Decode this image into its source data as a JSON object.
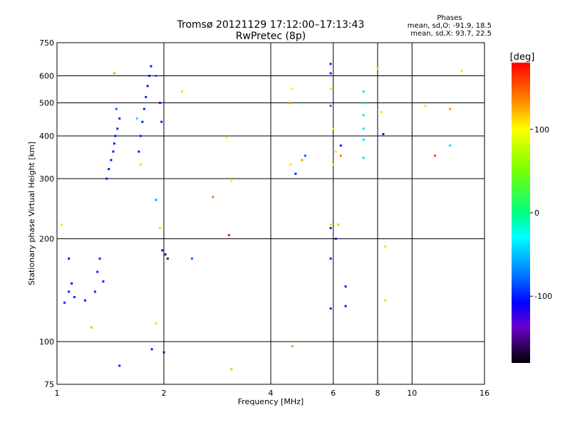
{
  "header": {
    "title": "Tromsø 20121129 17:12:00–17:13:43",
    "subtitle": "RwPretec (8p)"
  },
  "phase_box": {
    "heading": "Phases",
    "line_o": "mean, sd,O: -91.9, 18.5",
    "line_x": "mean, sd,X:  93.7, 22.5"
  },
  "colorbar": {
    "unit_label": "[deg]",
    "ticks": [
      "100",
      "0",
      "-100"
    ],
    "tick_values": [
      100,
      0,
      -100
    ],
    "range": [
      -180,
      180
    ]
  },
  "chart_data": {
    "type": "scatter",
    "xlabel": "Frequency [MHz]",
    "ylabel": "Stationary phase Virtual Height [km]",
    "xscale": "log",
    "yscale": "log",
    "xlim": [
      1,
      16
    ],
    "ylim": [
      75,
      750
    ],
    "x_ticks": [
      1,
      2,
      4,
      6,
      8,
      10,
      16
    ],
    "x_tick_labels": [
      "1",
      "2",
      "4",
      "6",
      "8",
      "10",
      "16"
    ],
    "y_ticks": [
      75,
      100,
      200,
      300,
      400,
      500,
      600,
      750
    ],
    "y_tick_labels": [
      "75",
      "100",
      "200",
      "300",
      "400",
      "500",
      "600",
      "750"
    ],
    "grid": true,
    "series": [
      {
        "points": [
          {
            "x": 1.05,
            "y": 130,
            "phase": -100
          },
          {
            "x": 1.08,
            "y": 140,
            "phase": -100
          },
          {
            "x": 1.1,
            "y": 148,
            "phase": -105
          },
          {
            "x": 1.12,
            "y": 135,
            "phase": -100
          },
          {
            "x": 1.2,
            "y": 132,
            "phase": -100
          },
          {
            "x": 1.28,
            "y": 140,
            "phase": -100
          },
          {
            "x": 1.3,
            "y": 160,
            "phase": -100
          },
          {
            "x": 1.32,
            "y": 175,
            "phase": -100
          },
          {
            "x": 1.35,
            "y": 150,
            "phase": -100
          },
          {
            "x": 1.08,
            "y": 175,
            "phase": -120
          },
          {
            "x": 1.38,
            "y": 300,
            "phase": -100
          },
          {
            "x": 1.4,
            "y": 320,
            "phase": -100
          },
          {
            "x": 1.42,
            "y": 340,
            "phase": -100
          },
          {
            "x": 1.44,
            "y": 360,
            "phase": -100
          },
          {
            "x": 1.45,
            "y": 380,
            "phase": -100
          },
          {
            "x": 1.46,
            "y": 400,
            "phase": -100
          },
          {
            "x": 1.48,
            "y": 420,
            "phase": -100
          },
          {
            "x": 1.5,
            "y": 450,
            "phase": -100
          },
          {
            "x": 1.47,
            "y": 480,
            "phase": -80
          },
          {
            "x": 1.45,
            "y": 610,
            "phase": 130
          },
          {
            "x": 1.7,
            "y": 360,
            "phase": -100
          },
          {
            "x": 1.72,
            "y": 400,
            "phase": -100
          },
          {
            "x": 1.74,
            "y": 440,
            "phase": -100
          },
          {
            "x": 1.76,
            "y": 480,
            "phase": -100
          },
          {
            "x": 1.78,
            "y": 520,
            "phase": -100
          },
          {
            "x": 1.8,
            "y": 560,
            "phase": -100
          },
          {
            "x": 1.82,
            "y": 600,
            "phase": -100
          },
          {
            "x": 1.84,
            "y": 640,
            "phase": -100
          },
          {
            "x": 1.72,
            "y": 330,
            "phase": 110
          },
          {
            "x": 1.68,
            "y": 450,
            "phase": -40
          },
          {
            "x": 1.9,
            "y": 600,
            "phase": -80
          },
          {
            "x": 1.95,
            "y": 500,
            "phase": -100
          },
          {
            "x": 1.97,
            "y": 440,
            "phase": -100
          },
          {
            "x": 1.98,
            "y": 185,
            "phase": -150
          },
          {
            "x": 2.02,
            "y": 180,
            "phase": -150
          },
          {
            "x": 2.05,
            "y": 175,
            "phase": -150
          },
          {
            "x": 1.9,
            "y": 260,
            "phase": -60
          },
          {
            "x": 1.95,
            "y": 215,
            "phase": 110
          },
          {
            "x": 2.25,
            "y": 540,
            "phase": 110
          },
          {
            "x": 2.4,
            "y": 175,
            "phase": -80
          },
          {
            "x": 2.75,
            "y": 265,
            "phase": 140
          },
          {
            "x": 3.05,
            "y": 205,
            "phase": 170
          },
          {
            "x": 3.0,
            "y": 395,
            "phase": 105
          },
          {
            "x": 3.1,
            "y": 295,
            "phase": 105
          },
          {
            "x": 1.9,
            "y": 113,
            "phase": 110
          },
          {
            "x": 2.0,
            "y": 93,
            "phase": -150
          },
          {
            "x": 1.85,
            "y": 95,
            "phase": -100
          },
          {
            "x": 1.5,
            "y": 85,
            "phase": -100
          },
          {
            "x": 1.25,
            "y": 110,
            "phase": 120
          },
          {
            "x": 1.03,
            "y": 220,
            "phase": 110
          },
          {
            "x": 3.1,
            "y": 83,
            "phase": 120
          },
          {
            "x": 4.5,
            "y": 500,
            "phase": 130
          },
          {
            "x": 4.6,
            "y": 550,
            "phase": 105
          },
          {
            "x": 4.7,
            "y": 310,
            "phase": -100
          },
          {
            "x": 4.9,
            "y": 340,
            "phase": 130
          },
          {
            "x": 5.0,
            "y": 350,
            "phase": -80
          },
          {
            "x": 4.6,
            "y": 97,
            "phase": 130
          },
          {
            "x": 4.55,
            "y": 330,
            "phase": 110
          },
          {
            "x": 5.9,
            "y": 650,
            "phase": -100
          },
          {
            "x": 5.9,
            "y": 610,
            "phase": -100
          },
          {
            "x": 5.9,
            "y": 550,
            "phase": 110
          },
          {
            "x": 5.9,
            "y": 490,
            "phase": -80
          },
          {
            "x": 6.0,
            "y": 420,
            "phase": 105
          },
          {
            "x": 6.0,
            "y": 330,
            "phase": 105
          },
          {
            "x": 5.9,
            "y": 220,
            "phase": 110
          },
          {
            "x": 5.9,
            "y": 215,
            "phase": -100
          },
          {
            "x": 5.9,
            "y": 175,
            "phase": -100
          },
          {
            "x": 5.9,
            "y": 125,
            "phase": -100
          },
          {
            "x": 6.1,
            "y": 200,
            "phase": -120
          },
          {
            "x": 6.2,
            "y": 220,
            "phase": 60
          },
          {
            "x": 6.3,
            "y": 350,
            "phase": 140
          },
          {
            "x": 6.3,
            "y": 375,
            "phase": -100
          },
          {
            "x": 6.5,
            "y": 145,
            "phase": -100
          },
          {
            "x": 6.5,
            "y": 127,
            "phase": -100
          },
          {
            "x": 6.1,
            "y": 360,
            "phase": 110
          },
          {
            "x": 7.3,
            "y": 540,
            "phase": -40
          },
          {
            "x": 7.3,
            "y": 500,
            "phase": -40
          },
          {
            "x": 7.3,
            "y": 460,
            "phase": -40
          },
          {
            "x": 7.3,
            "y": 420,
            "phase": -40
          },
          {
            "x": 7.3,
            "y": 390,
            "phase": -40
          },
          {
            "x": 7.3,
            "y": 345,
            "phase": -40
          },
          {
            "x": 8.0,
            "y": 630,
            "phase": 110
          },
          {
            "x": 8.2,
            "y": 470,
            "phase": 110
          },
          {
            "x": 8.4,
            "y": 190,
            "phase": 110
          },
          {
            "x": 8.3,
            "y": 405,
            "phase": -120
          },
          {
            "x": 8.4,
            "y": 132,
            "phase": 110
          },
          {
            "x": 10.9,
            "y": 490,
            "phase": 110
          },
          {
            "x": 11.6,
            "y": 350,
            "phase": 160
          },
          {
            "x": 12.8,
            "y": 480,
            "phase": 130
          },
          {
            "x": 12.8,
            "y": 375,
            "phase": -40
          },
          {
            "x": 13.8,
            "y": 620,
            "phase": 110
          }
        ]
      }
    ]
  }
}
